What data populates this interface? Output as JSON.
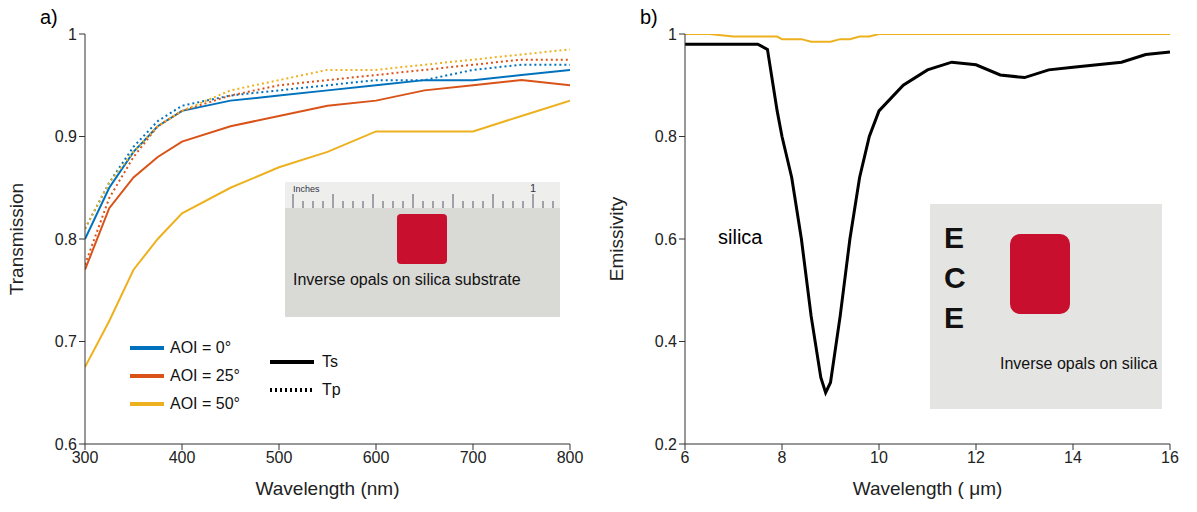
{
  "chart_data": [
    {
      "type": "line",
      "title": "a)",
      "x_label": "Wavelength (nm)",
      "y_label": "Transmission",
      "x": [
        300,
        325,
        350,
        375,
        400,
        450,
        500,
        550,
        600,
        650,
        700,
        750,
        800
      ],
      "xlim": [
        300,
        800
      ],
      "xticks": [
        300,
        400,
        500,
        600,
        700,
        800
      ],
      "ylim": [
        0.6,
        1
      ],
      "yticks": [
        0.6,
        0.7,
        0.8,
        0.9,
        1
      ],
      "legend": "lower left",
      "series": [
        {
          "name": "AOI = 0°",
          "polarization": "Ts",
          "color": "#0072bd",
          "line_style": "solid",
          "values": [
            0.8,
            0.85,
            0.885,
            0.91,
            0.925,
            0.935,
            0.94,
            0.945,
            0.95,
            0.955,
            0.955,
            0.96,
            0.965
          ]
        },
        {
          "name": "AOI = 0°",
          "polarization": "Tp",
          "color": "#0072bd",
          "line_style": "dotted",
          "values": [
            0.81,
            0.855,
            0.89,
            0.915,
            0.93,
            0.94,
            0.945,
            0.95,
            0.955,
            0.955,
            0.965,
            0.97,
            0.97
          ]
        },
        {
          "name": "AOI = 25°",
          "polarization": "Ts",
          "color": "#d95319",
          "line_style": "solid",
          "values": [
            0.77,
            0.83,
            0.86,
            0.88,
            0.895,
            0.91,
            0.92,
            0.93,
            0.935,
            0.945,
            0.95,
            0.955,
            0.95
          ]
        },
        {
          "name": "AOI = 25°",
          "polarization": "Tp",
          "color": "#d95319",
          "line_style": "dotted",
          "values": [
            0.775,
            0.84,
            0.88,
            0.91,
            0.925,
            0.94,
            0.95,
            0.955,
            0.96,
            0.965,
            0.97,
            0.975,
            0.975
          ]
        },
        {
          "name": "AOI = 50°",
          "polarization": "Ts",
          "color": "#edb120",
          "line_style": "solid",
          "values": [
            0.675,
            0.72,
            0.77,
            0.8,
            0.825,
            0.85,
            0.87,
            0.885,
            0.905,
            0.905,
            0.905,
            0.92,
            0.935
          ]
        },
        {
          "name": "AOI = 50°",
          "polarization": "Tp",
          "color": "#edb120",
          "line_style": "dotted",
          "values": [
            0.81,
            0.855,
            0.885,
            0.91,
            0.925,
            0.945,
            0.955,
            0.965,
            0.965,
            0.97,
            0.975,
            0.98,
            0.985
          ]
        }
      ],
      "annotations": [
        "Inches",
        "1",
        "Inverse opals on silica substrate"
      ]
    },
    {
      "type": "line",
      "title": "b)",
      "x_label": "Wavelength ( μm)",
      "y_label": "Emissivity",
      "x": [
        6,
        6.5,
        7,
        7.5,
        7.7,
        7.9,
        8,
        8.2,
        8.4,
        8.6,
        8.8,
        8.9,
        9,
        9.2,
        9.4,
        9.6,
        9.8,
        10,
        10.5,
        11,
        11.5,
        12,
        12.5,
        13,
        13.5,
        14,
        14.5,
        15,
        15.5,
        16
      ],
      "xlim": [
        6,
        16
      ],
      "xticks": [
        6,
        8,
        10,
        12,
        14,
        16
      ],
      "ylim": [
        0.2,
        1
      ],
      "yticks": [
        0.2,
        0.4,
        0.6,
        0.8,
        1
      ],
      "series": [
        {
          "color": "#000000",
          "line_style": "solid",
          "values": [
            0.98,
            0.98,
            0.98,
            0.98,
            0.97,
            0.85,
            0.8,
            0.72,
            0.6,
            0.45,
            0.33,
            0.3,
            0.32,
            0.45,
            0.6,
            0.72,
            0.8,
            0.85,
            0.9,
            0.93,
            0.945,
            0.94,
            0.92,
            0.915,
            0.93,
            0.935,
            0.94,
            0.945,
            0.96,
            0.965
          ]
        },
        {
          "color": "#edb120",
          "line_style": "solid",
          "values": [
            1,
            1,
            0.995,
            0.995,
            0.995,
            0.995,
            0.99,
            0.99,
            0.99,
            0.985,
            0.985,
            0.985,
            0.985,
            0.99,
            0.99,
            0.995,
            0.995,
            1,
            1,
            1,
            1,
            1,
            1,
            1,
            1,
            1,
            1,
            1,
            1,
            1
          ]
        }
      ],
      "annotations": [
        "silica",
        "ECE",
        "Inverse opals on silica"
      ]
    }
  ]
}
